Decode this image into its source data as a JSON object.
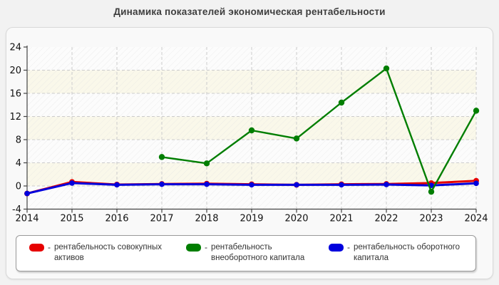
{
  "page": {
    "title": "Динамика показателей экономическая рентабельности"
  },
  "colors": {
    "page_bg": "#f2f2f2",
    "panel_bg": "#f9f9f9",
    "panel_border": "#d9d9d9",
    "band_light": "#fcfcfc",
    "band_cream": "#faf8ea",
    "hatch": "#e0e0e0",
    "grid": "#cccccc",
    "axis": "#444444",
    "tick_text": "#111111",
    "title_text": "#3d3d3d",
    "legend_border": "#9a9a9a",
    "series_red": "#e60000",
    "series_green": "#007e00",
    "series_blue": "#0000dd"
  },
  "legend": {
    "dash": "-",
    "items": [
      {
        "name": "рентабельность совокупных активов",
        "color": "#e60000",
        "lines": [
          "рентабельность совокупных",
          "активов"
        ]
      },
      {
        "name": "рентабельность внеоборотного капитала",
        "color": "#007e00",
        "lines": [
          "рентабельность",
          "внеоборотного капитала"
        ]
      },
      {
        "name": "рентабельность оборотного капитала",
        "color": "#0000dd",
        "lines": [
          "рентабельность оборотного",
          "капитала"
        ]
      }
    ]
  },
  "chart_data": {
    "type": "line",
    "title": "Динамика показателей экономическая рентабельности",
    "x": [
      2014,
      2015,
      2016,
      2017,
      2018,
      2019,
      2020,
      2021,
      2022,
      2023,
      2024
    ],
    "series": [
      {
        "name": "рентабельность совокупных активов",
        "color": "#e60000",
        "values": [
          -1.3,
          0.7,
          0.25,
          0.35,
          0.4,
          0.3,
          0.2,
          0.3,
          0.35,
          0.5,
          0.9
        ]
      },
      {
        "name": "рентабельность внеоборотного капитала",
        "color": "#007e00",
        "values": [
          null,
          null,
          null,
          5.0,
          3.9,
          9.6,
          8.2,
          14.4,
          20.3,
          -1.0,
          13.0
        ]
      },
      {
        "name": "рентабельность оборотного капитала",
        "color": "#0000dd",
        "values": [
          -1.3,
          0.5,
          0.2,
          0.3,
          0.3,
          0.2,
          0.2,
          0.2,
          0.25,
          0.1,
          0.45
        ]
      }
    ],
    "draw_order": [
      0,
      2,
      1
    ],
    "xlabel": "",
    "ylabel": "",
    "ylim": [
      -4,
      24
    ],
    "yticks": [
      24,
      20,
      16,
      12,
      8,
      4,
      0,
      -4
    ],
    "grid": true,
    "grid_style": "dashed",
    "plot_background": "alternating horizontal bands with diagonal hatch",
    "legend_position": "bottom"
  }
}
